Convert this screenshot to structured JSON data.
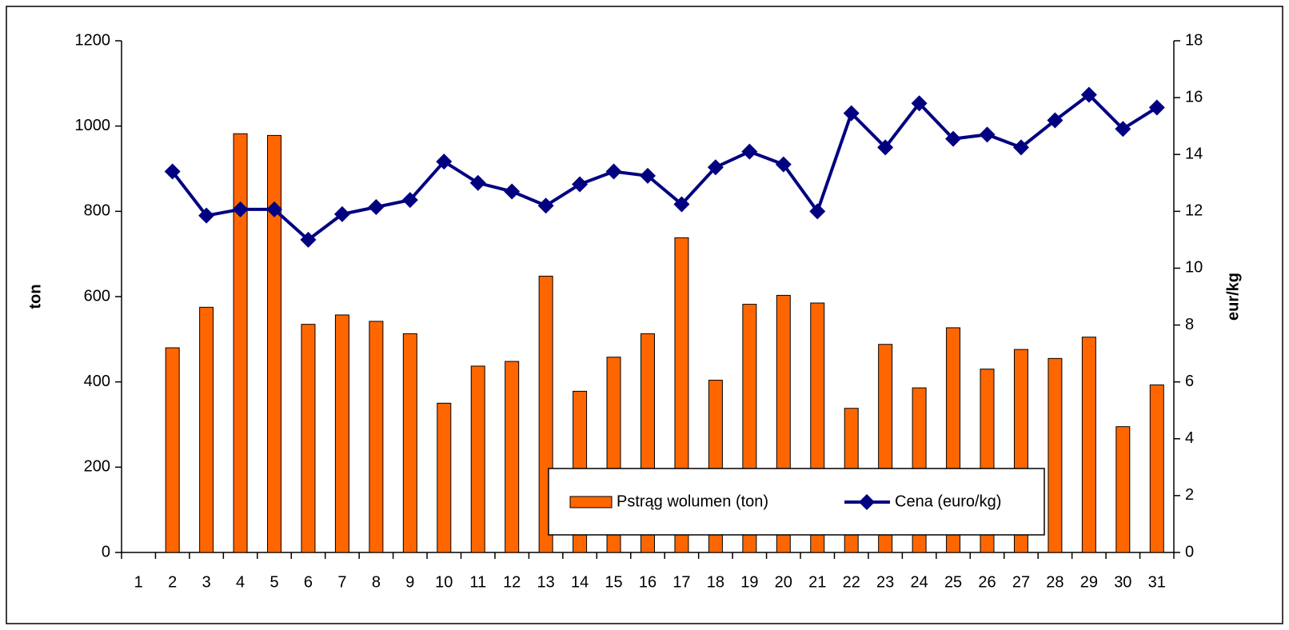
{
  "chart_data": {
    "type": "bar_line",
    "categories": [
      "1",
      "2",
      "3",
      "4",
      "5",
      "6",
      "7",
      "8",
      "9",
      "10",
      "11",
      "12",
      "13",
      "14",
      "15",
      "16",
      "17",
      "18",
      "19",
      "20",
      "21",
      "22",
      "23",
      "24",
      "25",
      "26",
      "27",
      "28",
      "29",
      "30",
      "31"
    ],
    "series": [
      {
        "name": "Pstrąg wolumen (ton)",
        "type": "bar",
        "color": "#ff6600",
        "values": [
          null,
          480,
          575,
          982,
          978,
          535,
          557,
          542,
          513,
          350,
          437,
          448,
          648,
          378,
          458,
          513,
          738,
          404,
          582,
          603,
          585,
          338,
          488,
          386,
          527,
          430,
          476,
          455,
          505,
          295,
          393
        ]
      },
      {
        "name": "Cena (euro/kg)",
        "type": "line",
        "axis": "y2",
        "color": "#000080",
        "values": [
          null,
          13.4,
          11.85,
          12.07,
          12.07,
          11.0,
          11.9,
          12.15,
          12.4,
          13.75,
          13.0,
          12.7,
          12.2,
          12.95,
          13.4,
          13.25,
          12.25,
          13.55,
          14.1,
          13.65,
          12.0,
          15.45,
          14.25,
          15.8,
          14.55,
          14.7,
          14.25,
          15.2,
          16.1,
          14.9,
          15.65
        ]
      }
    ],
    "ylabel": "ton",
    "y2label": "eur/kg",
    "ylim": [
      0,
      1200
    ],
    "yticks": [
      0,
      200,
      400,
      600,
      800,
      1000,
      1200
    ],
    "y2lim": [
      0,
      18
    ],
    "y2ticks": [
      0,
      2,
      4,
      6,
      8,
      10,
      12,
      14,
      16,
      18
    ],
    "grid": false,
    "legend": "lower right"
  }
}
